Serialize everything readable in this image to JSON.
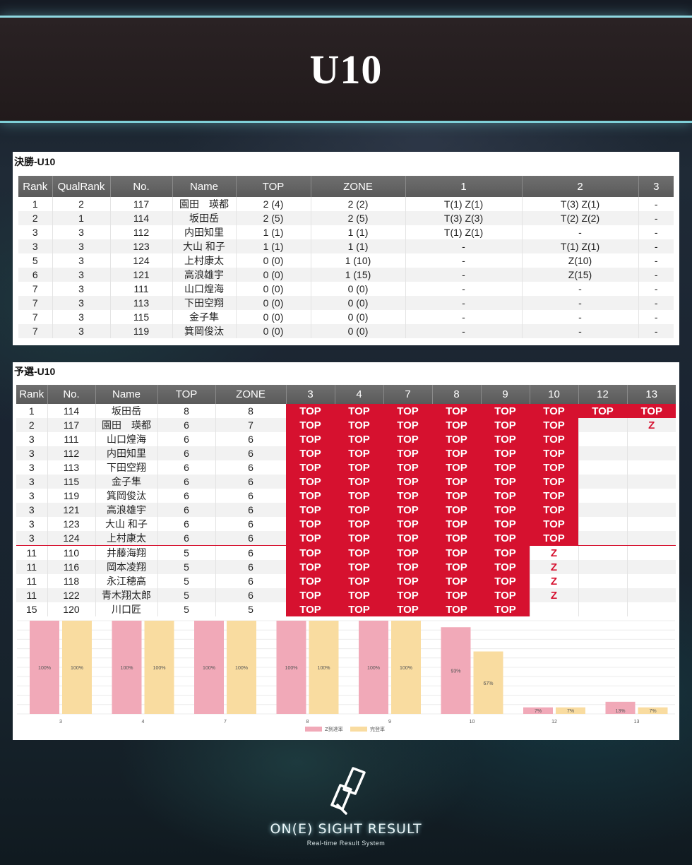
{
  "banner": {
    "title": "U10"
  },
  "final": {
    "title": "決勝-U10",
    "headers": [
      "Rank",
      "QualRank",
      "No.",
      "Name",
      "TOP",
      "ZONE",
      "1",
      "2",
      "3"
    ],
    "rows": [
      [
        "1",
        "2",
        "117",
        "園田　瑛都",
        "2 (4)",
        "2 (2)",
        "T(1) Z(1)",
        "T(3) Z(1)",
        "-"
      ],
      [
        "2",
        "1",
        "114",
        "坂田岳",
        "2 (5)",
        "2 (5)",
        "T(3) Z(3)",
        "T(2) Z(2)",
        "-"
      ],
      [
        "3",
        "3",
        "112",
        "内田知里",
        "1 (1)",
        "1 (1)",
        "T(1) Z(1)",
        "-",
        "-"
      ],
      [
        "3",
        "3",
        "123",
        "大山 和子",
        "1 (1)",
        "1 (1)",
        "-",
        "T(1) Z(1)",
        "-"
      ],
      [
        "5",
        "3",
        "124",
        "上村康太",
        "0 (0)",
        "1 (10)",
        "-",
        "Z(10)",
        "-"
      ],
      [
        "6",
        "3",
        "121",
        "高浪雄宇",
        "0 (0)",
        "1 (15)",
        "-",
        "Z(15)",
        "-"
      ],
      [
        "7",
        "3",
        "111",
        "山口煌海",
        "0 (0)",
        "0 (0)",
        "-",
        "-",
        "-"
      ],
      [
        "7",
        "3",
        "113",
        "下田空翔",
        "0 (0)",
        "0 (0)",
        "-",
        "-",
        "-"
      ],
      [
        "7",
        "3",
        "115",
        "金子隼",
        "0 (0)",
        "0 (0)",
        "-",
        "-",
        "-"
      ],
      [
        "7",
        "3",
        "119",
        "箕岡俊汰",
        "0 (0)",
        "0 (0)",
        "-",
        "-",
        "-"
      ]
    ]
  },
  "qualifier": {
    "title": "予選-U10",
    "headers": [
      "Rank",
      "No.",
      "Name",
      "TOP",
      "ZONE",
      "3",
      "4",
      "7",
      "8",
      "9",
      "10",
      "12",
      "13"
    ],
    "rows": [
      [
        "1",
        "114",
        "坂田岳",
        "8",
        "8",
        "TOP",
        "TOP",
        "TOP",
        "TOP",
        "TOP",
        "TOP",
        "TOP",
        "TOP"
      ],
      [
        "2",
        "117",
        "園田　瑛都",
        "6",
        "7",
        "TOP",
        "TOP",
        "TOP",
        "TOP",
        "TOP",
        "TOP",
        "",
        "Z"
      ],
      [
        "3",
        "111",
        "山口煌海",
        "6",
        "6",
        "TOP",
        "TOP",
        "TOP",
        "TOP",
        "TOP",
        "TOP",
        "",
        ""
      ],
      [
        "3",
        "112",
        "内田知里",
        "6",
        "6",
        "TOP",
        "TOP",
        "TOP",
        "TOP",
        "TOP",
        "TOP",
        "",
        ""
      ],
      [
        "3",
        "113",
        "下田空翔",
        "6",
        "6",
        "TOP",
        "TOP",
        "TOP",
        "TOP",
        "TOP",
        "TOP",
        "",
        ""
      ],
      [
        "3",
        "115",
        "金子隼",
        "6",
        "6",
        "TOP",
        "TOP",
        "TOP",
        "TOP",
        "TOP",
        "TOP",
        "",
        ""
      ],
      [
        "3",
        "119",
        "箕岡俊汰",
        "6",
        "6",
        "TOP",
        "TOP",
        "TOP",
        "TOP",
        "TOP",
        "TOP",
        "",
        ""
      ],
      [
        "3",
        "121",
        "高浪雄宇",
        "6",
        "6",
        "TOP",
        "TOP",
        "TOP",
        "TOP",
        "TOP",
        "TOP",
        "",
        ""
      ],
      [
        "3",
        "123",
        "大山 和子",
        "6",
        "6",
        "TOP",
        "TOP",
        "TOP",
        "TOP",
        "TOP",
        "TOP",
        "",
        ""
      ],
      [
        "3",
        "124",
        "上村康太",
        "6",
        "6",
        "TOP",
        "TOP",
        "TOP",
        "TOP",
        "TOP",
        "TOP",
        "",
        ""
      ],
      [
        "11",
        "110",
        "井藤海翔",
        "5",
        "6",
        "TOP",
        "TOP",
        "TOP",
        "TOP",
        "TOP",
        "Z",
        "",
        ""
      ],
      [
        "11",
        "116",
        "岡本凌翔",
        "5",
        "6",
        "TOP",
        "TOP",
        "TOP",
        "TOP",
        "TOP",
        "Z",
        "",
        ""
      ],
      [
        "11",
        "118",
        "永江穂高",
        "5",
        "6",
        "TOP",
        "TOP",
        "TOP",
        "TOP",
        "TOP",
        "Z",
        "",
        ""
      ],
      [
        "11",
        "122",
        "青木翔太郎",
        "5",
        "6",
        "TOP",
        "TOP",
        "TOP",
        "TOP",
        "TOP",
        "Z",
        "",
        ""
      ],
      [
        "15",
        "120",
        "川口匠",
        "5",
        "5",
        "TOP",
        "TOP",
        "TOP",
        "TOP",
        "TOP",
        "",
        "",
        ""
      ]
    ],
    "cutline_after_row": 9
  },
  "chart_data": {
    "type": "bar",
    "categories": [
      "3",
      "4",
      "7",
      "8",
      "9",
      "10",
      "12",
      "13"
    ],
    "series": [
      {
        "name": "Z到達率",
        "values": [
          100,
          100,
          100,
          100,
          100,
          93,
          7,
          13
        ],
        "labels": [
          "100%",
          "100%",
          "100%",
          "100%",
          "100%",
          "93%",
          "7%",
          "13%"
        ],
        "color": "#f1a9b8"
      },
      {
        "name": "完登率",
        "values": [
          100,
          100,
          100,
          100,
          100,
          67,
          7,
          7
        ],
        "labels": [
          "100%",
          "100%",
          "100%",
          "100%",
          "100%",
          "67%",
          "7%",
          "7%"
        ],
        "color": "#f9dca0"
      }
    ],
    "ylim": [
      0,
      100
    ],
    "grid": true,
    "legend": "bottom"
  },
  "colors": {
    "top_cell": "#d6112f",
    "header_bg": "#5f5f5f",
    "accent_glow": "#8fd8e0"
  },
  "footer": {
    "brand": "ON(E) SIGHT RESULT",
    "tagline": "Real-time Result System",
    "logo_icon": "chain-link-icon"
  }
}
